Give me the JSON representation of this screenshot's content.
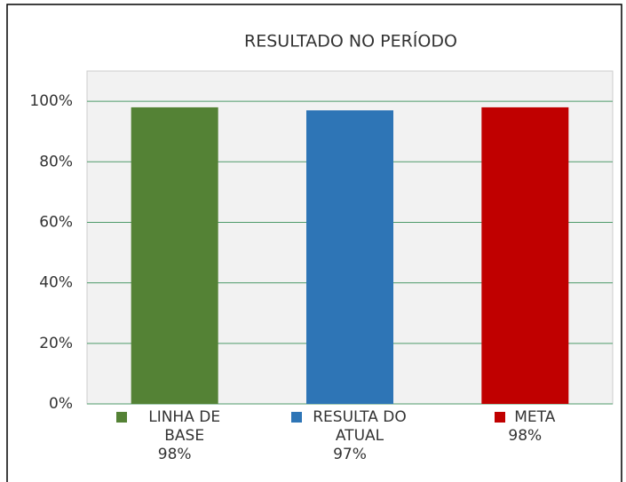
{
  "chart_data": {
    "type": "bar",
    "title": "RESULTADO NO PERÍODO",
    "categories": [
      "LINHA DE BASE",
      "RESULTA DO ATUAL",
      "META"
    ],
    "values": [
      98,
      97,
      98
    ],
    "value_labels": [
      "98%",
      "97%",
      "98%"
    ],
    "colors": [
      "#548235",
      "#2e75b6",
      "#c00000"
    ],
    "ylim": [
      0,
      110
    ],
    "yticks": [
      {
        "value": 0,
        "label": "0%"
      },
      {
        "value": 20,
        "label": "20%"
      },
      {
        "value": 40,
        "label": "40%"
      },
      {
        "value": 60,
        "label": "60%"
      },
      {
        "value": 80,
        "label": "80%"
      },
      {
        "value": 100,
        "label": "100%"
      }
    ],
    "grid": true
  }
}
